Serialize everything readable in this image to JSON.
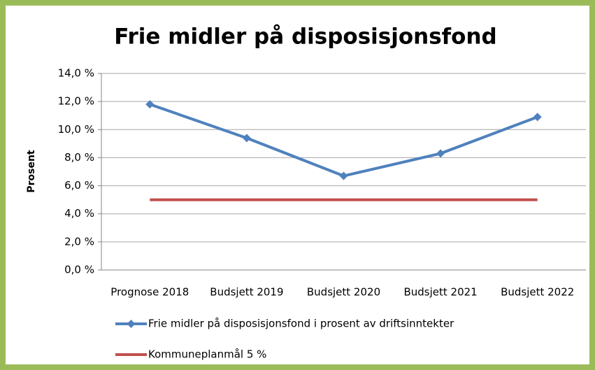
{
  "chart_data": {
    "type": "line",
    "title": "Frie midler på disposisjonsfond",
    "y_label": "Prosent",
    "categories": [
      "Prognose 2018",
      "Budsjett 2019",
      "Budsjett 2020",
      "Budsjett 2021",
      "Budsjett 2022"
    ],
    "series": [
      {
        "name": "Frie midler på disposisjonsfond i prosent av driftsinntekter",
        "color": "#4f81bd",
        "marker": "diamond",
        "values": [
          11.8,
          9.4,
          6.7,
          8.3,
          10.9
        ]
      },
      {
        "name": "Kommuneplanmål 5 %",
        "color": "#c0504d",
        "values": [
          5,
          5,
          5,
          5,
          5
        ]
      }
    ],
    "ylim": [
      0,
      14
    ],
    "yticks": [
      {
        "value": 0,
        "label": "0,0 %"
      },
      {
        "value": 2,
        "label": "2,0 %"
      },
      {
        "value": 4,
        "label": "4,0 %"
      },
      {
        "value": 6,
        "label": "6,0 %"
      },
      {
        "value": 8,
        "label": "8,0 %"
      },
      {
        "value": 10,
        "label": "10,0 %"
      },
      {
        "value": 12,
        "label": "12,0 %"
      },
      {
        "value": 14,
        "label": "14,0 %"
      }
    ],
    "grid": true,
    "legend": "bottom"
  }
}
